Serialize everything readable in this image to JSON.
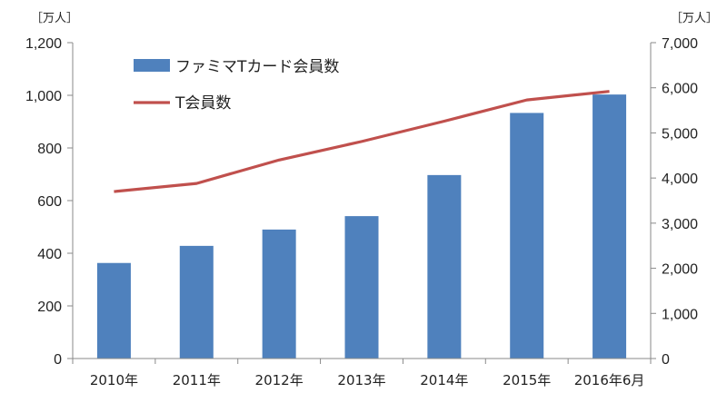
{
  "chart_data": {
    "type": "bar+line",
    "categories": [
      "2010年",
      "2011年",
      "2012年",
      "2013年",
      "2014年",
      "2015年",
      "2016年6月"
    ],
    "series": [
      {
        "name": "ファミマTカード会員数",
        "type": "bar",
        "axis": "left",
        "color": "#4f81bd",
        "values": [
          363,
          428,
          490,
          541,
          697,
          933,
          1003
        ]
      },
      {
        "name": "T会員数",
        "type": "line",
        "axis": "right",
        "color": "#c0504d",
        "values": [
          3700,
          3880,
          4400,
          4810,
          5260,
          5730,
          5920
        ]
      }
    ],
    "left_axis": {
      "unit": "［万人］",
      "ylim": [
        0,
        1200
      ],
      "ticks": [
        "0",
        "200",
        "400",
        "600",
        "800",
        "1,000",
        "1,200"
      ]
    },
    "right_axis": {
      "unit": "［万人］",
      "ylim": [
        0,
        7000
      ],
      "ticks": [
        "0",
        "1,000",
        "2,000",
        "3,000",
        "4,000",
        "5,000",
        "6,000",
        "7,000"
      ]
    },
    "legend_position": "top-left",
    "grid": false
  }
}
